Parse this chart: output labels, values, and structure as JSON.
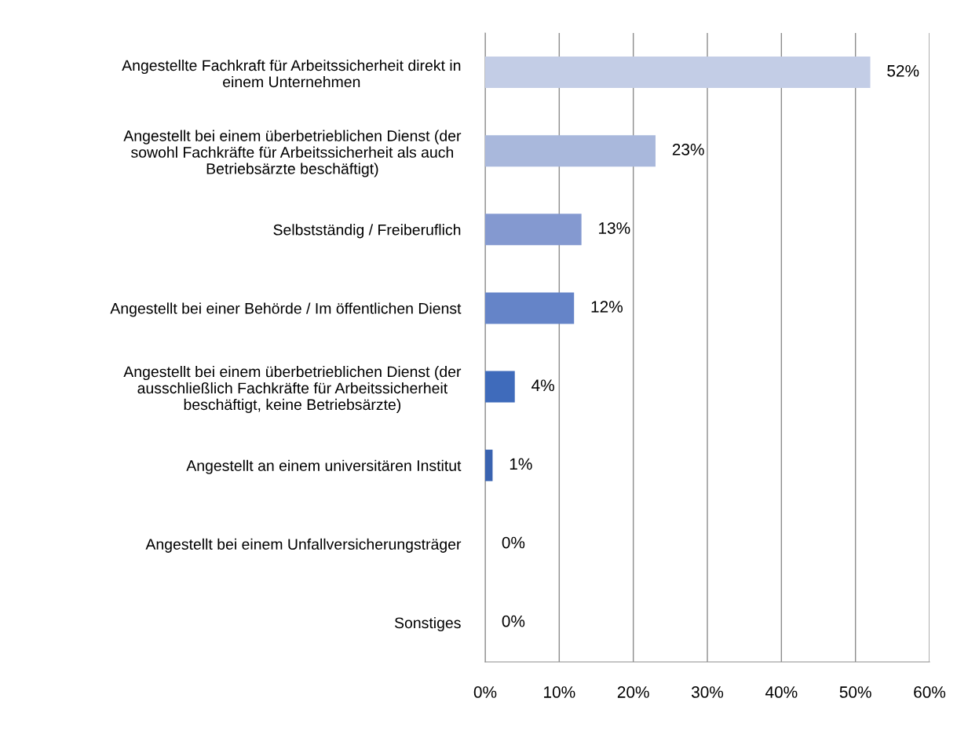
{
  "chart_data": {
    "type": "bar",
    "orientation": "horizontal",
    "categories": [
      "Angestellte Fachkraft für Arbeitssicherheit direkt in\neinem Unternehmen",
      "Angestellt bei einem überbetrieblichen Dienst (der\nsowohl Fachkräfte für Arbeitssicherheit als auch\nBetriebsärzte beschäftigt)",
      "Selbstständig / Freiberuflich",
      "Angestellt bei einer Behörde / Im öffentlichen Dienst",
      "Angestellt bei einem überbetrieblichen Dienst (der\nausschließlich Fachkräfte für Arbeitssicherheit\nbeschäftigt, keine Betriebsärzte)",
      "Angestellt an einem universitären Institut",
      "Angestellt bei einem Unfallversicherungsträger",
      "Sonstiges"
    ],
    "values": [
      52,
      23,
      13,
      12,
      4,
      1,
      0,
      0
    ],
    "colors": [
      "#c3cde6",
      "#a9b8dc",
      "#8499d0",
      "#6584c8",
      "#3f6bbb",
      "#3a63b0",
      "#3a5ea8",
      "#385a9f"
    ],
    "value_labels": [
      "52%",
      "23%",
      "13%",
      "12%",
      "4%",
      "1%",
      "0%",
      "0%"
    ],
    "xlim": [
      0,
      60
    ],
    "xticks": [
      {
        "value": 0,
        "label": "0%"
      },
      {
        "value": 10,
        "label": "10%"
      },
      {
        "value": 20,
        "label": "20%"
      },
      {
        "value": 30,
        "label": "30%"
      },
      {
        "value": 40,
        "label": "40%"
      },
      {
        "value": 50,
        "label": "50%"
      },
      {
        "value": 60,
        "label": "60%"
      }
    ],
    "grid": "x",
    "legend": false
  }
}
